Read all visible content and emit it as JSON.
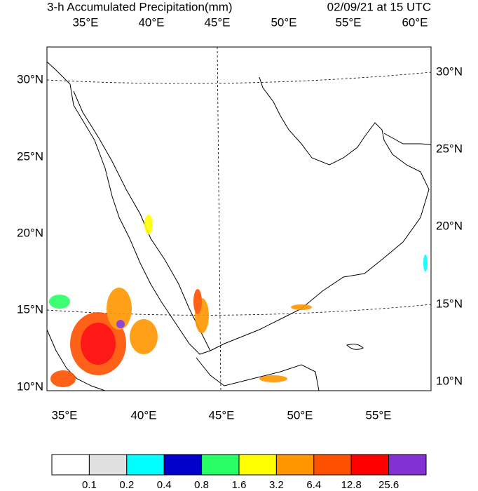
{
  "header": {
    "title": "3-h Accumulated Precipitation(mm)",
    "valid_time": "02/09/21 at 15 UTC"
  },
  "top_labels": [
    "35°E",
    "40°E",
    "45°E",
    "50°E",
    "55°E",
    "60°E"
  ],
  "bottom_labels": [
    "35°E",
    "40°E",
    "45°E",
    "50°E",
    "55°E"
  ],
  "left_labels": [
    "30°N",
    "25°N",
    "20°N",
    "15°N",
    "10°N"
  ],
  "right_labels": [
    "30°N",
    "25°N",
    "20°N",
    "15°N",
    "10°N"
  ],
  "colorbar": {
    "colors": [
      "#ffffff",
      "#e0e0e0",
      "#00ffff",
      "#0000c8",
      "#28ff64",
      "#ffff00",
      "#ff9600",
      "#ff5000",
      "#ff0000",
      "#8232d2"
    ],
    "labels": [
      "0.1",
      "0.2",
      "0.4",
      "0.8",
      "1.6",
      "3.2",
      "6.4",
      "12.8",
      "25.6"
    ]
  }
}
